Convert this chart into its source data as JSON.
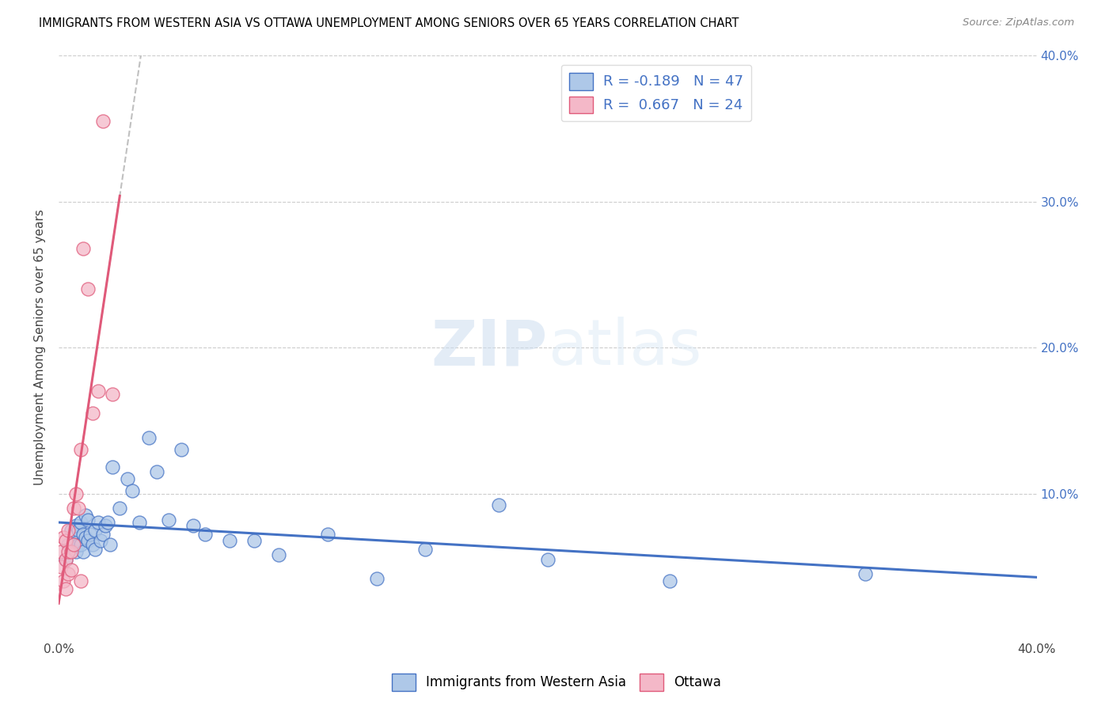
{
  "title": "IMMIGRANTS FROM WESTERN ASIA VS OTTAWA UNEMPLOYMENT AMONG SENIORS OVER 65 YEARS CORRELATION CHART",
  "source": "Source: ZipAtlas.com",
  "xlabel_bottom": "Immigrants from Western Asia",
  "xlabel_bottom2": "Ottawa",
  "ylabel": "Unemployment Among Seniors over 65 years",
  "xlim": [
    0.0,
    0.4
  ],
  "ylim": [
    0.0,
    0.4
  ],
  "legend_r1": "R = -0.189",
  "legend_n1": "N = 47",
  "legend_r2": "R =  0.667",
  "legend_n2": "N = 24",
  "color_blue": "#aec8e8",
  "color_pink": "#f4b8c8",
  "color_blue_line": "#4472c4",
  "color_pink_line": "#e05a7a",
  "color_dashed_line": "#c0c0c0",
  "watermark_zip": "ZIP",
  "watermark_atlas": "atlas",
  "blue_scatter_x": [
    0.003,
    0.004,
    0.005,
    0.006,
    0.007,
    0.007,
    0.008,
    0.008,
    0.009,
    0.009,
    0.01,
    0.01,
    0.011,
    0.011,
    0.012,
    0.012,
    0.013,
    0.014,
    0.015,
    0.015,
    0.016,
    0.017,
    0.018,
    0.019,
    0.02,
    0.021,
    0.022,
    0.025,
    0.028,
    0.03,
    0.033,
    0.037,
    0.04,
    0.045,
    0.05,
    0.055,
    0.06,
    0.07,
    0.08,
    0.09,
    0.11,
    0.13,
    0.15,
    0.18,
    0.2,
    0.25,
    0.33
  ],
  "blue_scatter_y": [
    0.055,
    0.065,
    0.075,
    0.065,
    0.078,
    0.06,
    0.075,
    0.065,
    0.08,
    0.065,
    0.072,
    0.06,
    0.085,
    0.07,
    0.068,
    0.082,
    0.072,
    0.065,
    0.075,
    0.062,
    0.08,
    0.068,
    0.072,
    0.078,
    0.08,
    0.065,
    0.118,
    0.09,
    0.11,
    0.102,
    0.08,
    0.138,
    0.115,
    0.082,
    0.13,
    0.078,
    0.072,
    0.068,
    0.068,
    0.058,
    0.072,
    0.042,
    0.062,
    0.092,
    0.055,
    0.04,
    0.045
  ],
  "pink_scatter_x": [
    0.001,
    0.001,
    0.002,
    0.002,
    0.003,
    0.003,
    0.003,
    0.004,
    0.004,
    0.004,
    0.005,
    0.005,
    0.006,
    0.006,
    0.007,
    0.008,
    0.009,
    0.009,
    0.01,
    0.012,
    0.014,
    0.016,
    0.018,
    0.022
  ],
  "pink_scatter_y": [
    0.06,
    0.05,
    0.04,
    0.07,
    0.035,
    0.055,
    0.068,
    0.06,
    0.045,
    0.075,
    0.048,
    0.06,
    0.09,
    0.065,
    0.1,
    0.09,
    0.04,
    0.13,
    0.268,
    0.24,
    0.155,
    0.17,
    0.355,
    0.168
  ]
}
